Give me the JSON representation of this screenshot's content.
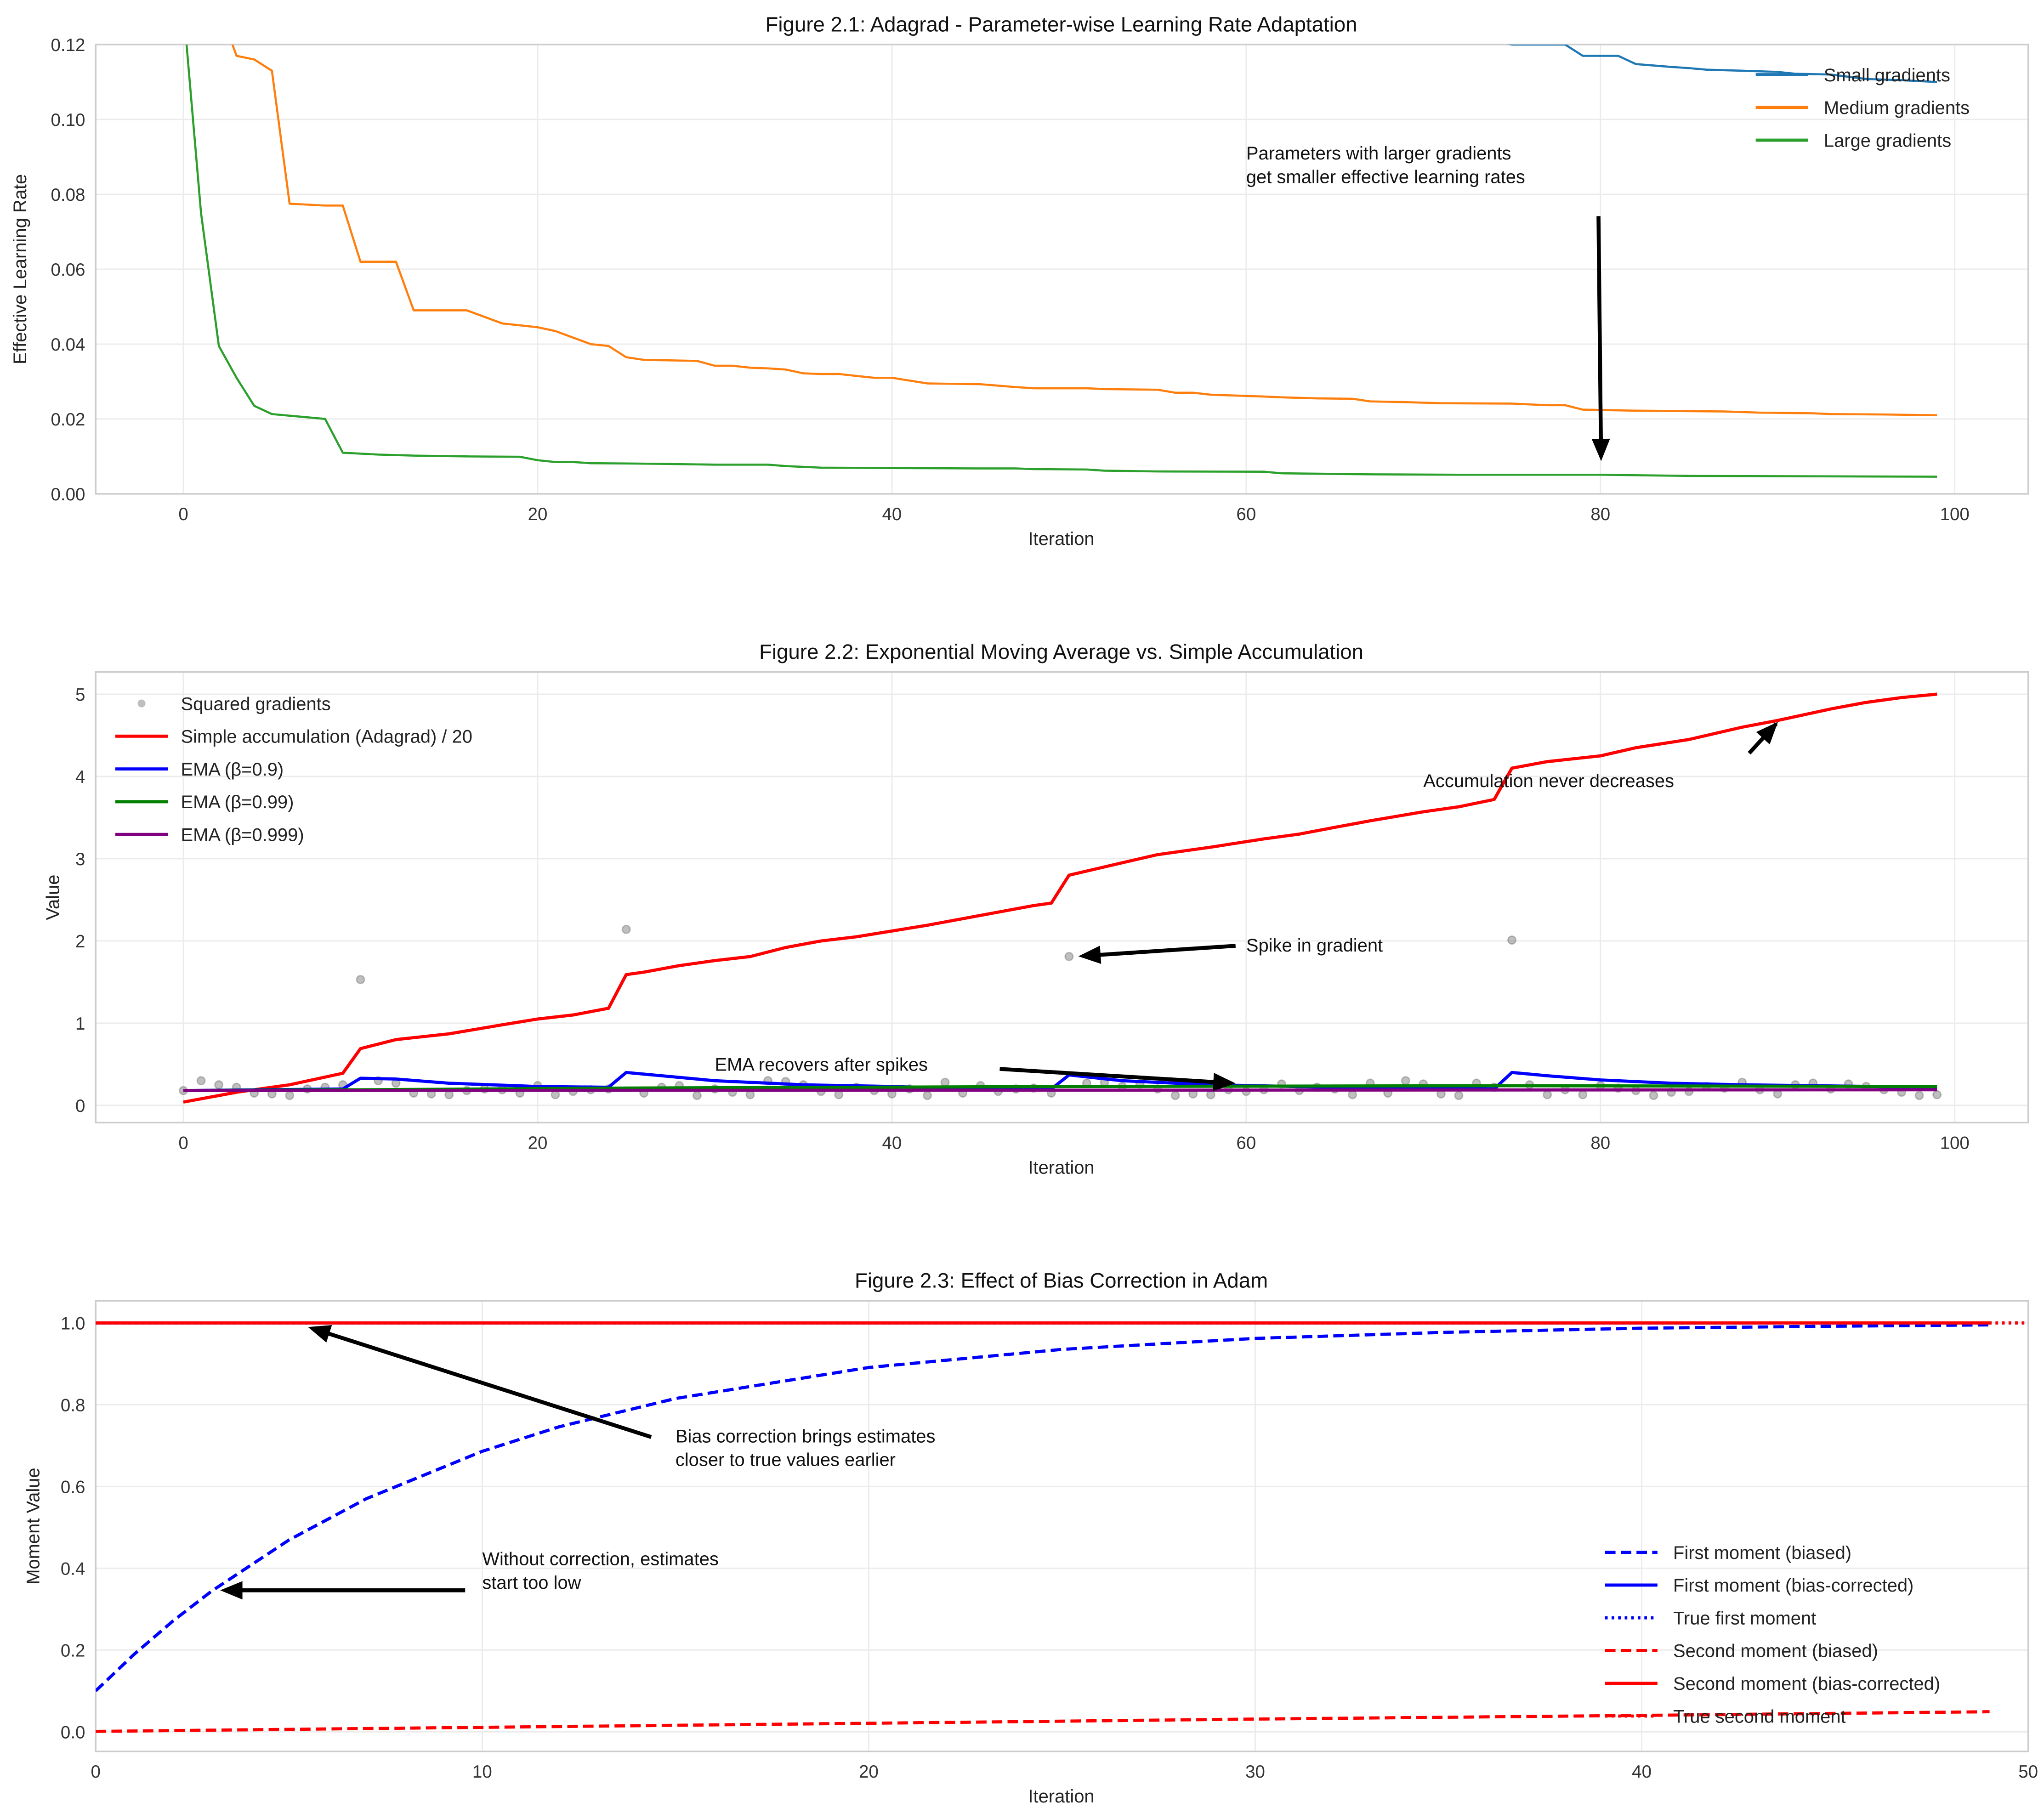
{
  "chart_data": [
    {
      "type": "line",
      "title": "Figure 2.1: Adagrad - Parameter-wise Learning Rate Adaptation",
      "xlabel": "Iteration",
      "ylabel": "Effective Learning Rate",
      "xlim": [
        -4.95,
        104.15
      ],
      "ylim": [
        0,
        0.12
      ],
      "xticks": [
        0,
        20,
        40,
        60,
        80,
        100
      ],
      "xtick_labels": [
        "0",
        "20",
        "40",
        "60",
        "80",
        "100"
      ],
      "yticks": [
        0,
        0.02,
        0.04,
        0.06,
        0.08,
        0.1,
        0.12
      ],
      "ytick_labels": [
        "0.00",
        "0.02",
        "0.04",
        "0.06",
        "0.08",
        "0.10",
        "0.12"
      ],
      "grid": true,
      "legend": "top-right",
      "series": [
        {
          "name": "Small gradients",
          "color": "#1f77b4",
          "style": "solid",
          "x": [
            74,
            75,
            78,
            79,
            81,
            82,
            84,
            85,
            86,
            88,
            90,
            91,
            93,
            95,
            97,
            99
          ],
          "y": [
            0.121,
            0.12,
            0.12,
            0.117,
            0.117,
            0.1148,
            0.114,
            0.1137,
            0.1133,
            0.113,
            0.1127,
            0.1122,
            0.112,
            0.1108,
            0.1105,
            0.11
          ]
        },
        {
          "name": "Medium gradients",
          "color": "#ff7f0e",
          "style": "solid",
          "x": [
            0,
            2,
            3,
            4,
            5,
            6,
            8,
            9,
            10,
            12,
            13,
            16,
            18,
            20,
            21,
            23,
            24,
            25,
            26,
            29,
            30,
            31,
            32,
            33,
            34,
            35,
            36,
            37,
            38,
            39,
            40,
            42,
            45,
            47,
            48,
            51,
            52,
            55,
            56,
            57,
            58,
            61,
            62,
            64,
            66,
            67,
            69,
            71,
            75,
            77,
            78,
            79,
            82,
            87,
            89,
            92,
            93,
            96,
            99
          ],
          "y": [
            0.2,
            0.13,
            0.117,
            0.116,
            0.113,
            0.0775,
            0.077,
            0.077,
            0.062,
            0.062,
            0.049,
            0.049,
            0.0455,
            0.0445,
            0.0435,
            0.04,
            0.0395,
            0.0365,
            0.0358,
            0.0355,
            0.0342,
            0.0342,
            0.0337,
            0.0335,
            0.0332,
            0.0322,
            0.032,
            0.032,
            0.0315,
            0.031,
            0.031,
            0.0295,
            0.0293,
            0.0285,
            0.0282,
            0.0282,
            0.028,
            0.0278,
            0.027,
            0.027,
            0.0265,
            0.026,
            0.0258,
            0.0255,
            0.0254,
            0.0247,
            0.0245,
            0.0242,
            0.0241,
            0.0237,
            0.0237,
            0.0225,
            0.0222,
            0.022,
            0.0217,
            0.0215,
            0.0213,
            0.0212,
            0.021
          ]
        },
        {
          "name": "Large gradients",
          "color": "#2ca02c",
          "style": "solid",
          "x": [
            0,
            1,
            2,
            3,
            4,
            5,
            8,
            9,
            11,
            13,
            16,
            19,
            20,
            21,
            22,
            23,
            25,
            27,
            30,
            33,
            34,
            36,
            40,
            45,
            47,
            48,
            51,
            52,
            55,
            61,
            62,
            67,
            72,
            80,
            85,
            99
          ],
          "y": [
            0.13,
            0.075,
            0.0395,
            0.031,
            0.0235,
            0.0213,
            0.02,
            0.011,
            0.0105,
            0.0102,
            0.01,
            0.0099,
            0.009,
            0.0085,
            0.0085,
            0.0082,
            0.0081,
            0.008,
            0.0078,
            0.0078,
            0.0074,
            0.007,
            0.0069,
            0.0068,
            0.0068,
            0.0066,
            0.0065,
            0.0062,
            0.006,
            0.0059,
            0.0055,
            0.0052,
            0.0051,
            0.0051,
            0.0048,
            0.0046
          ]
        }
      ],
      "annotations": [
        {
          "text": [
            "Parameters with larger gradients",
            "get smaller effective learning rates"
          ],
          "xytext": [
            60,
            0.083
          ],
          "xy": [
            80,
            0.008
          ]
        }
      ]
    },
    {
      "type": "line",
      "title": "Figure 2.2: Exponential Moving Average vs. Simple Accumulation",
      "xlabel": "Iteration",
      "ylabel": "Value",
      "xlim": [
        -4.95,
        104.15
      ],
      "ylim": [
        -0.21,
        5.27
      ],
      "xticks": [
        0,
        20,
        40,
        60,
        80,
        100
      ],
      "xtick_labels": [
        "0",
        "20",
        "40",
        "60",
        "80",
        "100"
      ],
      "yticks": [
        0,
        1,
        2,
        3,
        4,
        5
      ],
      "ytick_labels": [
        "0",
        "1",
        "2",
        "3",
        "4",
        "5"
      ],
      "grid": true,
      "legend": "top-left",
      "scatter": {
        "name": "Squared gradients",
        "color": "#808080",
        "y": [
          0.18,
          0.3,
          0.25,
          0.22,
          0.15,
          0.14,
          0.12,
          0.2,
          0.22,
          0.25,
          1.53,
          0.3,
          0.27,
          0.15,
          0.14,
          0.13,
          0.18,
          0.2,
          0.19,
          0.15,
          0.24,
          0.13,
          0.17,
          0.19,
          0.2,
          2.14,
          0.15,
          0.22,
          0.24,
          0.12,
          0.2,
          0.16,
          0.13,
          0.3,
          0.29,
          0.25,
          0.17,
          0.13,
          0.22,
          0.18,
          0.14,
          0.2,
          0.12,
          0.28,
          0.15,
          0.24,
          0.17,
          0.2,
          0.21,
          0.15,
          1.81,
          0.27,
          0.28,
          0.23,
          0.26,
          0.2,
          0.12,
          0.14,
          0.13,
          0.19,
          0.17,
          0.19,
          0.26,
          0.18,
          0.22,
          0.2,
          0.13,
          0.27,
          0.15,
          0.3,
          0.26,
          0.14,
          0.12,
          0.27,
          0.22,
          2.01,
          0.25,
          0.13,
          0.19,
          0.13,
          0.24,
          0.21,
          0.18,
          0.12,
          0.16,
          0.17,
          0.23,
          0.21,
          0.28,
          0.19,
          0.14,
          0.25,
          0.27,
          0.2,
          0.26,
          0.23,
          0.19,
          0.16,
          0.12,
          0.13
        ]
      },
      "series": [
        {
          "name": "Simple accumulation (Adagrad) / 20",
          "color": "#ff0000",
          "style": "solid",
          "x": [
            0,
            3,
            6,
            9,
            10,
            12,
            15,
            18,
            20,
            22,
            24,
            25,
            26,
            28,
            30,
            32,
            34,
            36,
            38,
            40,
            42,
            44,
            46,
            48,
            49,
            50,
            53,
            55,
            58,
            61,
            63,
            65,
            67,
            70,
            72,
            74,
            75,
            77,
            80,
            82,
            85,
            88,
            90,
            93,
            95,
            97,
            99
          ],
          "y": [
            0.04,
            0.16,
            0.25,
            0.39,
            0.69,
            0.8,
            0.87,
            0.98,
            1.05,
            1.1,
            1.18,
            1.59,
            1.62,
            1.7,
            1.76,
            1.81,
            1.92,
            2.0,
            2.05,
            2.12,
            2.19,
            2.27,
            2.35,
            2.43,
            2.46,
            2.8,
            2.95,
            3.05,
            3.14,
            3.24,
            3.3,
            3.38,
            3.46,
            3.57,
            3.63,
            3.72,
            4.1,
            4.18,
            4.25,
            4.35,
            4.45,
            4.6,
            4.68,
            4.82,
            4.9,
            4.96,
            5.0
          ]
        },
        {
          "name": "EMA (β=0.9)",
          "color": "#0000ff",
          "style": "solid",
          "x": [
            0,
            9,
            10,
            12,
            15,
            20,
            24,
            25,
            27,
            30,
            35,
            40,
            45,
            49,
            50,
            53,
            58,
            65,
            74,
            75,
            77,
            80,
            84,
            88,
            99
          ],
          "y": [
            0.18,
            0.2,
            0.33,
            0.32,
            0.27,
            0.23,
            0.22,
            0.4,
            0.36,
            0.3,
            0.25,
            0.23,
            0.2,
            0.2,
            0.37,
            0.3,
            0.25,
            0.22,
            0.2,
            0.4,
            0.36,
            0.31,
            0.27,
            0.25,
            0.22
          ]
        },
        {
          "name": "EMA (β=0.99)",
          "color": "#008000",
          "style": "solid",
          "x": [
            0,
            10,
            25,
            50,
            75,
            99
          ],
          "y": [
            0.18,
            0.19,
            0.21,
            0.23,
            0.24,
            0.23
          ]
        },
        {
          "name": "EMA (β=0.999)",
          "color": "#800080",
          "style": "solid",
          "x": [
            0,
            99
          ],
          "y": [
            0.18,
            0.19
          ]
        }
      ],
      "annotations": [
        {
          "text": [
            "Accumulation never decreases"
          ],
          "xytext": [
            70,
            3.95
          ],
          "xy": [
            90,
            4.7
          ]
        },
        {
          "text": [
            "Spike in gradient"
          ],
          "xytext": [
            60,
            1.95
          ],
          "xy": [
            50,
            1.81
          ]
        },
        {
          "text": [
            "EMA recovers after spikes"
          ],
          "xytext": [
            30,
            0.5
          ],
          "xy": [
            60,
            0.25
          ]
        }
      ]
    },
    {
      "type": "line",
      "title": "Figure 2.3: Effect of Bias Correction in Adam",
      "xlabel": "Iteration",
      "ylabel": "Moment Value",
      "xlim": [
        0,
        50
      ],
      "ylim": [
        -0.048,
        1.054
      ],
      "xticks": [
        0,
        10,
        20,
        30,
        40,
        50
      ],
      "xtick_labels": [
        "0",
        "10",
        "20",
        "30",
        "40",
        "50"
      ],
      "yticks": [
        0,
        0.2,
        0.4,
        0.6,
        0.8,
        1.0
      ],
      "ytick_labels": [
        "0.0",
        "0.2",
        "0.4",
        "0.6",
        "0.8",
        "1.0"
      ],
      "grid": true,
      "legend": "lower-right",
      "series": [
        {
          "name": "First moment (biased)",
          "color": "#0000ff",
          "style": "dashed",
          "x": [
            0,
            1,
            2,
            3,
            5,
            7,
            10,
            12,
            15,
            20,
            25,
            30,
            35,
            40,
            45,
            49
          ],
          "y": [
            0.1,
            0.19,
            0.271,
            0.344,
            0.469,
            0.57,
            0.686,
            0.746,
            0.815,
            0.891,
            0.935,
            0.962,
            0.977,
            0.987,
            0.992,
            0.995
          ]
        },
        {
          "name": "First moment (bias-corrected)",
          "color": "#0000ff",
          "style": "solid",
          "x": [
            0,
            49
          ],
          "y": [
            1.0,
            1.0
          ]
        },
        {
          "name": "True first moment",
          "color": "#0000ff",
          "style": "dotted",
          "x": [
            0,
            50
          ],
          "y": [
            1.0,
            1.0
          ]
        },
        {
          "name": "Second moment (biased)",
          "color": "#ff0000",
          "style": "dashed",
          "x": [
            0,
            10,
            20,
            30,
            40,
            49
          ],
          "y": [
            0.001,
            0.011,
            0.021,
            0.031,
            0.04,
            0.049
          ]
        },
        {
          "name": "Second moment (bias-corrected)",
          "color": "#ff0000",
          "style": "solid",
          "x": [
            0,
            49
          ],
          "y": [
            1.0,
            1.0
          ]
        },
        {
          "name": "True second moment",
          "color": "#ff0000",
          "style": "dotted",
          "x": [
            0,
            50
          ],
          "y": [
            1.0,
            1.0
          ]
        }
      ],
      "annotations": [
        {
          "text": [
            "Bias correction brings estimates",
            "closer to true values earlier"
          ],
          "xytext": [
            15,
            0.65
          ],
          "xy": [
            5.5,
            1.0
          ]
        },
        {
          "text": [
            "Without correction, estimates",
            "start too low"
          ],
          "xytext": [
            10,
            0.35
          ],
          "xy": [
            3.2,
            0.35
          ]
        }
      ]
    }
  ]
}
